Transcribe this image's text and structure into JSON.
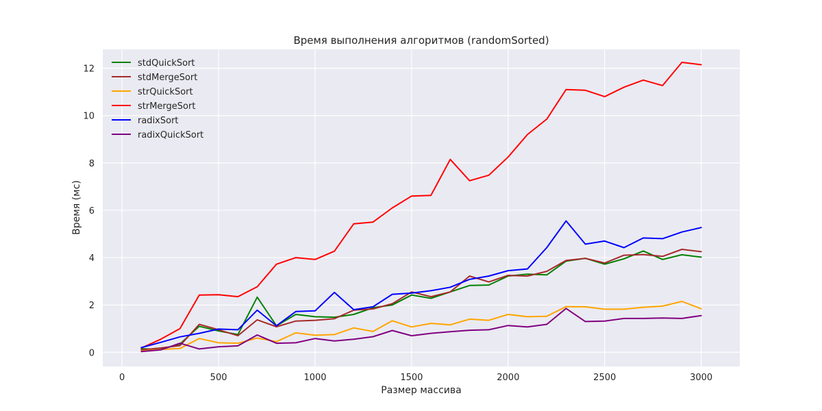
{
  "chart_data": {
    "type": "line",
    "title": "Время выполнения алгоритмов (randomSorted)",
    "xlabel": "Размер массива",
    "ylabel": "Время (мс)",
    "xlim": [
      -100,
      3200
    ],
    "ylim": [
      -0.6,
      12.8
    ],
    "xticks": [
      0,
      500,
      1000,
      1500,
      2000,
      2500,
      3000
    ],
    "yticks": [
      0,
      2,
      4,
      6,
      8,
      10,
      12
    ],
    "grid": true,
    "legend_position": "top-left",
    "x": [
      100,
      200,
      300,
      400,
      500,
      600,
      700,
      800,
      900,
      1000,
      1100,
      1200,
      1300,
      1400,
      1500,
      1600,
      1700,
      1800,
      1900,
      2000,
      2100,
      2200,
      2300,
      2400,
      2500,
      2600,
      2700,
      2800,
      2900,
      3000
    ],
    "series": [
      {
        "name": "stdQuickSort",
        "color": "#008000",
        "values": [
          0.15,
          0.12,
          0.35,
          1.1,
          0.9,
          0.75,
          2.33,
          1.12,
          1.6,
          1.5,
          1.48,
          1.6,
          1.88,
          2.0,
          2.42,
          2.28,
          2.55,
          2.82,
          2.84,
          3.22,
          3.3,
          3.27,
          3.85,
          3.97,
          3.72,
          3.95,
          4.28,
          3.92,
          4.12,
          4.02
        ]
      },
      {
        "name": "stdMergeSort",
        "color": "#a52a2a",
        "values": [
          0.1,
          0.18,
          0.28,
          1.18,
          0.95,
          0.7,
          1.37,
          1.08,
          1.32,
          1.35,
          1.42,
          1.78,
          1.83,
          2.05,
          2.55,
          2.35,
          2.55,
          3.22,
          2.97,
          3.25,
          3.22,
          3.42,
          3.88,
          3.97,
          3.77,
          4.1,
          4.13,
          4.05,
          4.35,
          4.25
        ]
      },
      {
        "name": "strQuickSort",
        "color": "#ffa500",
        "values": [
          0.05,
          0.12,
          0.16,
          0.58,
          0.4,
          0.38,
          0.6,
          0.45,
          0.82,
          0.72,
          0.75,
          1.03,
          0.88,
          1.33,
          1.07,
          1.22,
          1.16,
          1.4,
          1.35,
          1.6,
          1.5,
          1.52,
          1.93,
          1.92,
          1.82,
          1.82,
          1.9,
          1.95,
          2.15,
          1.84
        ]
      },
      {
        "name": "strMergeSort",
        "color": "#ff0000",
        "values": [
          0.18,
          0.55,
          1.0,
          2.42,
          2.43,
          2.35,
          2.77,
          3.72,
          4.0,
          3.92,
          4.27,
          5.43,
          5.5,
          6.1,
          6.6,
          6.63,
          8.15,
          7.25,
          7.48,
          8.25,
          9.2,
          9.85,
          11.1,
          11.07,
          10.8,
          11.2,
          11.5,
          11.27,
          12.25,
          12.15
        ]
      },
      {
        "name": "radixSort",
        "color": "#0000ff",
        "values": [
          0.2,
          0.42,
          0.65,
          0.8,
          0.98,
          0.95,
          1.78,
          1.12,
          1.72,
          1.75,
          2.53,
          1.8,
          1.92,
          2.45,
          2.5,
          2.6,
          2.75,
          3.08,
          3.22,
          3.45,
          3.52,
          4.42,
          5.55,
          4.57,
          4.7,
          4.42,
          4.83,
          4.8,
          5.08,
          5.27
        ]
      },
      {
        "name": "radixQuickSort",
        "color": "#800080",
        "values": [
          0.03,
          0.1,
          0.38,
          0.14,
          0.23,
          0.27,
          0.73,
          0.38,
          0.4,
          0.58,
          0.48,
          0.55,
          0.66,
          0.92,
          0.7,
          0.8,
          0.87,
          0.93,
          0.95,
          1.13,
          1.07,
          1.18,
          1.85,
          1.3,
          1.32,
          1.43,
          1.43,
          1.45,
          1.43,
          1.55
        ]
      }
    ]
  }
}
